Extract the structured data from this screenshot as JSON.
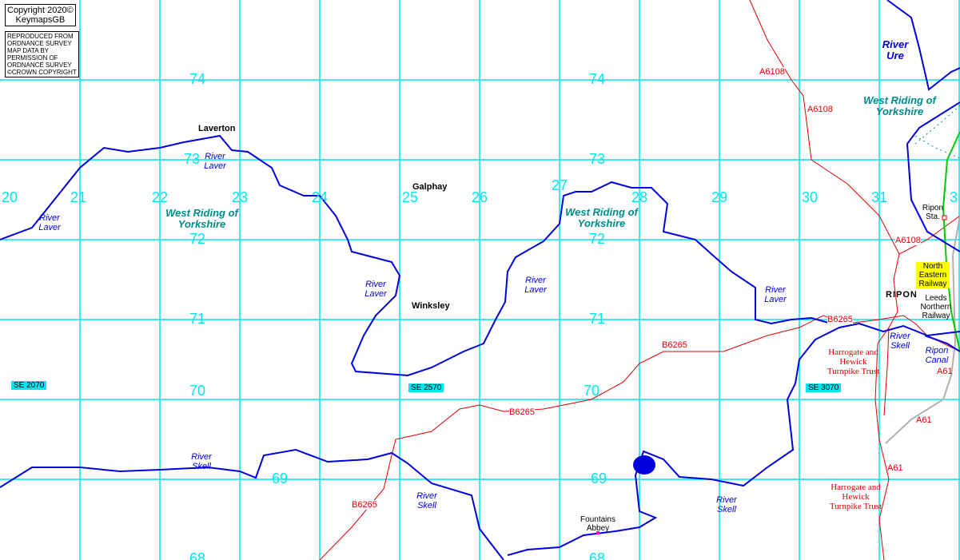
{
  "copyright": {
    "line1": "Copyright 2020©",
    "line2": "KeymapsGB"
  },
  "os_notice": [
    "REPRODUCED FROM",
    "ORDNANCE SURVEY",
    "MAP DATA BY",
    "PERMISSION OF",
    "ORDNANCE SURVEY",
    "©CROWN COPYRIGHT"
  ],
  "colors": {
    "grid": "#00e5ee",
    "river": "#0000dd",
    "road": "#e00000",
    "railway": "#00cc00",
    "a61": "#b0b0b0",
    "county": "#008b8b"
  },
  "eastings": [
    "20",
    "21",
    "22",
    "23",
    "24",
    "25",
    "26",
    "27",
    "28",
    "29",
    "30",
    "31",
    "3"
  ],
  "northings": {
    "n74a": "74",
    "n74b": "74",
    "n73a": "73",
    "n73b": "73",
    "n72a": "72",
    "n72b": "72",
    "n71a": "71",
    "n71b": "71",
    "n70a": "70",
    "n70b": "70",
    "n69a": "69",
    "n69b": "69",
    "n68a": "68",
    "n68b": "68"
  },
  "grid_refs": [
    "SE 2070",
    "SE 2570",
    "SE 3070"
  ],
  "rivers": {
    "ure": "River Ure",
    "laver": "River Laver",
    "skell": "River Skell",
    "canal": "Ripon Canal"
  },
  "county": "West Riding of Yorkshire",
  "places": {
    "laverton": "Laverton",
    "galphay": "Galphay",
    "winksley": "Winksley",
    "ripon": "RIPON",
    "ripon_sta": "Ripon Sta.",
    "fountains": "Fountains Abbey"
  },
  "roads": {
    "a6108": "A6108",
    "b6265": "B6265",
    "a61": "A61"
  },
  "railways": {
    "ner": "North Eastern Railway",
    "lnr": "Leeds Northern Railway"
  },
  "turnpike": "Harrogate and Hewick Turnpike Trust"
}
